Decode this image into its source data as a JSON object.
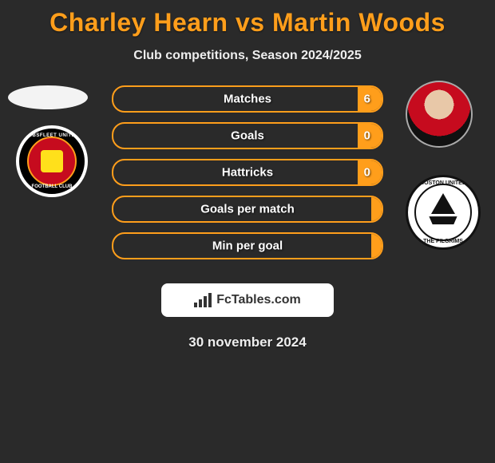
{
  "title": "Charley Hearn vs Martin Woods",
  "subtitle": "Club competitions, Season 2024/2025",
  "date": "30 november 2024",
  "colors": {
    "accent": "#ff9e1b",
    "bg": "#2a2a2a",
    "text": "#ffffff",
    "barBg": "#2a2a2a"
  },
  "leftPlayer": {
    "name": "Charley Hearn",
    "club": "Ebbsfleet United",
    "clubBadge": {
      "outer": "#000000",
      "ring": "#ffffff",
      "inner": "#c60b1e",
      "innerRing": "#ff9e1b",
      "center": "#ffe01b",
      "textTop": "EBBSFLEET UNITED",
      "textBottom": "FOOTBALL CLUB"
    }
  },
  "rightPlayer": {
    "name": "Martin Woods",
    "club": "Boston United",
    "clubBadge": {
      "outer": "#ffffff",
      "ring": "#111111",
      "textTop": "BOSTON UNITED",
      "textBottom": "THE PILGRIMS"
    }
  },
  "stats": [
    {
      "label": "Matches",
      "rightValue": "6",
      "rightFillPct": 9,
      "showRightValue": true
    },
    {
      "label": "Goals",
      "rightValue": "0",
      "rightFillPct": 9,
      "showRightValue": true
    },
    {
      "label": "Hattricks",
      "rightValue": "0",
      "rightFillPct": 9,
      "showRightValue": true
    },
    {
      "label": "Goals per match",
      "rightValue": "",
      "rightFillPct": 4,
      "showRightValue": false
    },
    {
      "label": "Min per goal",
      "rightValue": "",
      "rightFillPct": 4,
      "showRightValue": false
    }
  ],
  "brand": "FcTables.com"
}
